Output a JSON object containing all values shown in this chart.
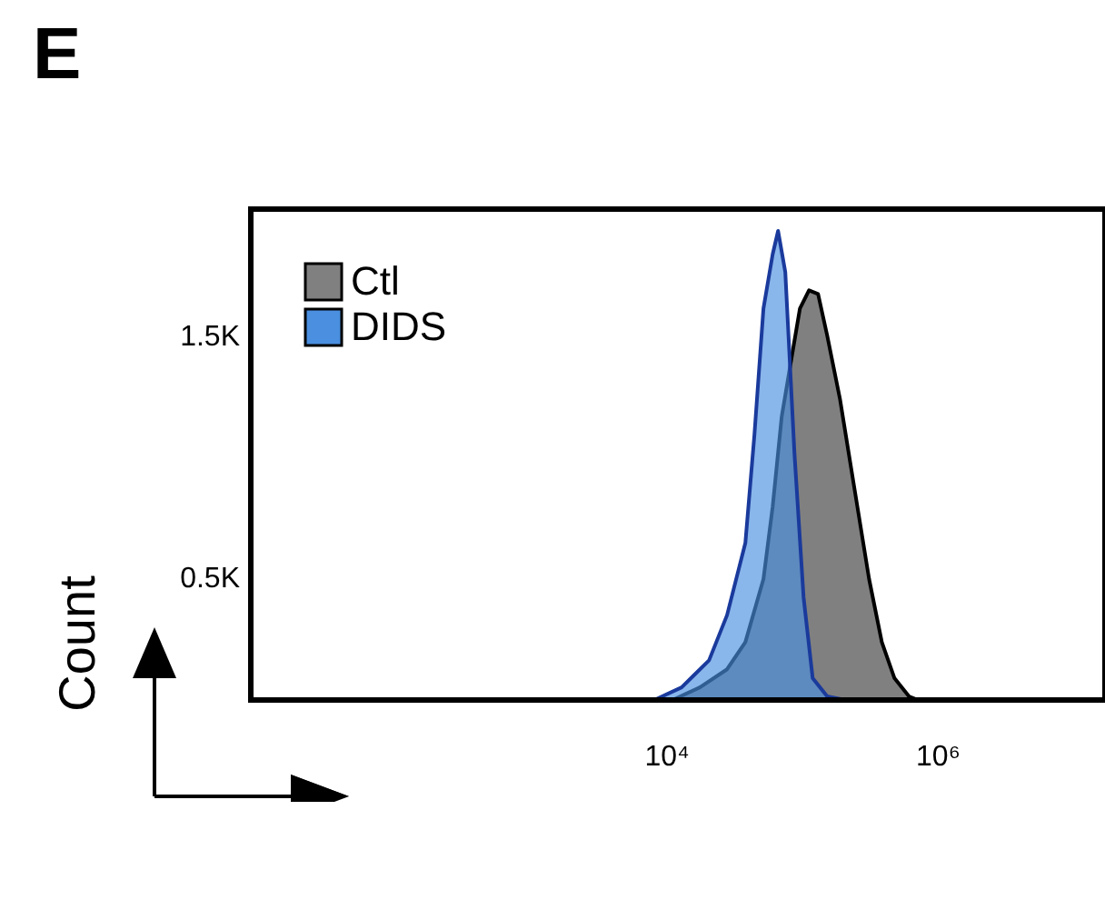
{
  "chart_data": {
    "type": "area",
    "title": "E",
    "ylabel": "Count",
    "log": "x",
    "xlim": [
      8.5,
      17000000
    ],
    "xticks": [
      {
        "value": 10000,
        "label": "10⁴"
      },
      {
        "value": 1000000,
        "label": "10⁶"
      }
    ],
    "ylim": [
      0,
      2030
    ],
    "yticks": [
      {
        "value": 500,
        "label": "0.5K"
      },
      {
        "value": 1500,
        "label": "1.5K"
      }
    ],
    "legend": "top left",
    "series": [
      {
        "name": "Ctl",
        "color": "#808080",
        "x": [
          10970,
          17450,
          27700,
          37800,
          51400,
          60100,
          70100,
          81800,
          95500,
          111400,
          130000,
          151800,
          188400,
          241300,
          309300,
          384000,
          476000,
          609000,
          711000
        ],
        "values": [
          0,
          52,
          127,
          239,
          500,
          799,
          1172,
          1396,
          1619,
          1694,
          1679,
          1507,
          1246,
          873,
          500,
          239,
          90,
          15,
          0
        ]
      },
      {
        "name": "DIDS",
        "color": "#4a8fe0",
        "x": [
          8050,
          12800,
          20400,
          27700,
          37800,
          44100,
          51400,
          60100,
          65900,
          74500,
          87000,
          101600,
          118600,
          151800,
          206500
        ],
        "values": [
          0,
          52,
          164,
          351,
          649,
          1097,
          1619,
          1843,
          1940,
          1769,
          1022,
          425,
          90,
          15,
          0
        ]
      }
    ]
  }
}
